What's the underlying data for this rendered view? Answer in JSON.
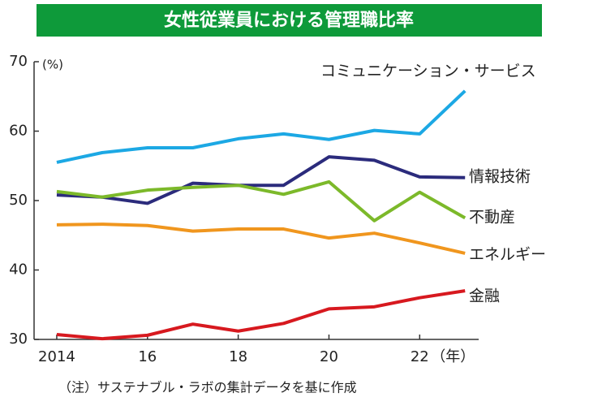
{
  "chart_data": {
    "type": "line",
    "title": "女性従業員における管理職比率",
    "y_unit": "(%)",
    "x_unit": "（年）",
    "note": "（注）サステナブル・ラボの集計データを基に作成",
    "x": [
      2014,
      2015,
      2016,
      2017,
      2018,
      2019,
      2020,
      2021,
      2022,
      2023
    ],
    "xlim": [
      2013.5,
      2023.3
    ],
    "xticks": [
      2014,
      {
        "value": 2016,
        "label": "16"
      },
      {
        "value": 2018,
        "label": "18"
      },
      {
        "value": 2020,
        "label": "20"
      },
      {
        "value": 2022,
        "label": "22"
      }
    ],
    "ylim": [
      30,
      70
    ],
    "yticks": [
      30,
      40,
      50,
      60,
      70
    ],
    "series": [
      {
        "name": "コミュニケーション・サービス",
        "color": "#1ca8e4",
        "values": [
          55.5,
          56.9,
          57.6,
          57.6,
          58.9,
          59.6,
          58.8,
          60.1,
          59.6,
          65.8
        ]
      },
      {
        "name": "情報技術",
        "color": "#2b2b7c",
        "values": [
          50.8,
          50.5,
          49.6,
          52.5,
          52.2,
          52.2,
          56.3,
          55.8,
          53.4,
          53.3
        ]
      },
      {
        "name": "不動産",
        "color": "#7cb92a",
        "values": [
          51.3,
          50.5,
          51.5,
          51.9,
          52.2,
          50.9,
          52.7,
          47.1,
          51.2,
          47.5
        ]
      },
      {
        "name": "エネルギー",
        "color": "#f0961e",
        "values": [
          46.5,
          46.6,
          46.4,
          45.6,
          45.9,
          45.9,
          44.6,
          45.3,
          43.9,
          42.4
        ]
      },
      {
        "name": "金融",
        "color": "#d7191f",
        "values": [
          30.7,
          30.1,
          30.6,
          32.2,
          31.2,
          32.3,
          34.4,
          34.7,
          36.0,
          37.0
        ]
      }
    ]
  }
}
